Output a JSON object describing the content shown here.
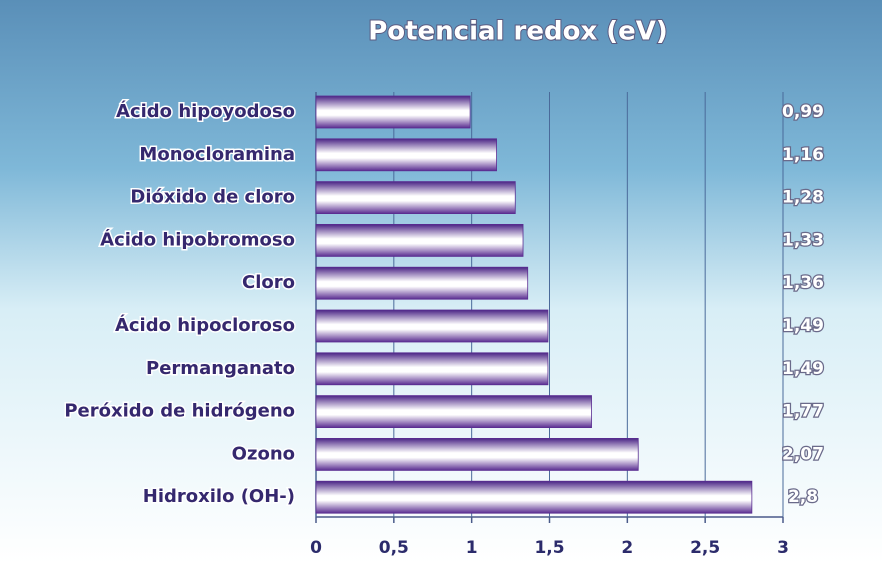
{
  "chart_data": {
    "type": "bar",
    "orientation": "horizontal",
    "title": "Potencial redox (eV)",
    "categories": [
      "Ácido hipoyodoso",
      "Monocloramina",
      "Dióxido de cloro",
      "Ácido hipobromoso",
      "Cloro",
      "Ácido hipocloroso",
      "Permanganato",
      "Peróxido de hidrógeno",
      "Ozono",
      "Hidroxilo (OH-)"
    ],
    "values": [
      0.99,
      1.16,
      1.28,
      1.33,
      1.36,
      1.49,
      1.49,
      1.77,
      2.07,
      2.8
    ],
    "value_labels": [
      "0,99",
      "1,16",
      "1,28",
      "1,33",
      "1,36",
      "1,49",
      "1,49",
      "1,77",
      "2,07",
      "2,8"
    ],
    "color": "#5a2d91",
    "xlim": [
      0,
      3
    ],
    "xticks": [
      0,
      {
        "value": 0.5,
        "label": "0,5"
      },
      1,
      {
        "value": 1.5,
        "label": "1,5"
      },
      2,
      {
        "value": 2.5,
        "label": "2,5"
      },
      3
    ],
    "grid": true
  }
}
